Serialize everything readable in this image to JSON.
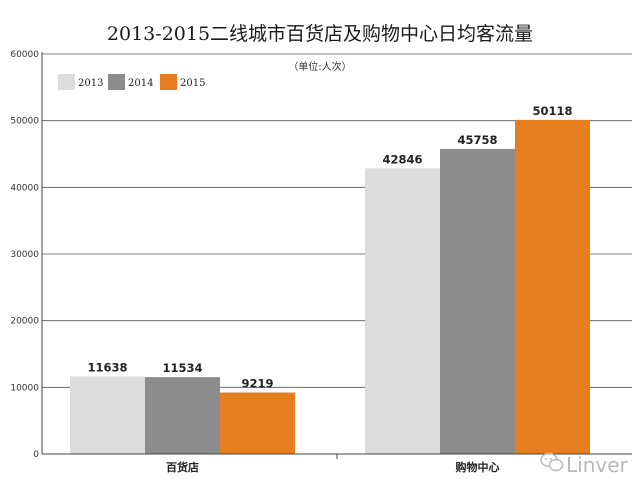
{
  "chart_data": {
    "type": "bar",
    "title": "2013-2015二线城市百货店及购物中心日均客流量",
    "subtitle": "（单位:人次）",
    "categories": [
      "百货店",
      "购物中心"
    ],
    "series": [
      {
        "name": "2013",
        "color": "#dcdcdc",
        "values": [
          11638,
          42846
        ]
      },
      {
        "name": "2014",
        "color": "#8c8c8c",
        "values": [
          11534,
          45758
        ]
      },
      {
        "name": "2015",
        "color": "#e67d1e",
        "values": [
          9219,
          50118
        ]
      }
    ],
    "data_labels": [
      [
        "11638",
        "11534",
        "9219"
      ],
      [
        "42846",
        "45758",
        "50118"
      ]
    ],
    "ylim": [
      0,
      60000
    ],
    "yticks": [
      0,
      10000,
      20000,
      30000,
      40000,
      50000,
      60000
    ],
    "grid": true,
    "legend": "top-left"
  },
  "watermark": {
    "text": "Linver",
    "icon": "wechat-icon"
  }
}
